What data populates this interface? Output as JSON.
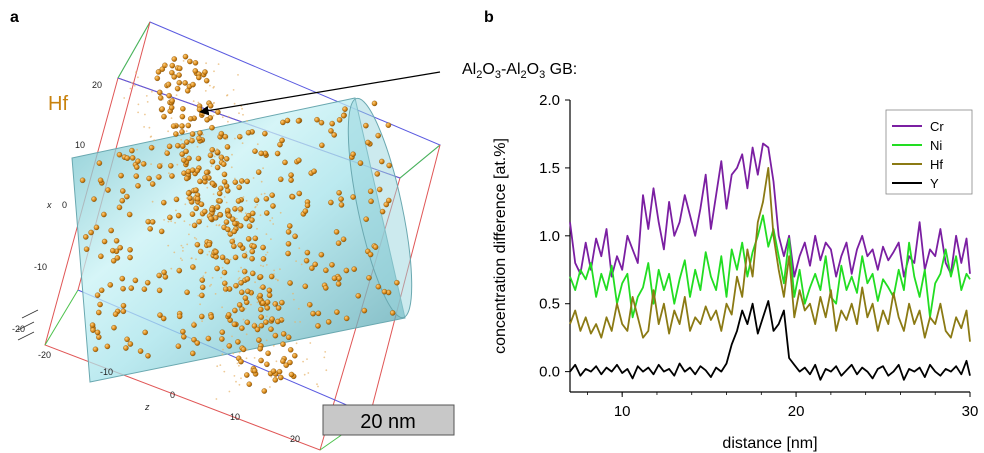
{
  "panel_a": {
    "label": "a",
    "element": "Hf",
    "element_color": "#c8820e",
    "axis_labels": {
      "x": "x",
      "z": "z"
    },
    "x_ticks": [
      "20",
      "10",
      "0",
      "-10",
      "-20"
    ],
    "z_ticks": [
      "-20",
      "-10",
      "0",
      "10",
      "20"
    ],
    "annotation": {
      "base": [
        "Al",
        "O",
        "-Al",
        "O",
        " GB:"
      ],
      "subs": [
        "2",
        "3",
        "2",
        "3"
      ]
    },
    "scale_bar": "20 nm",
    "cylinder_color": "#7fd4dc",
    "atom_color": "#d98a1a"
  },
  "chart_data": {
    "type": "line",
    "panel_label": "b",
    "xlabel": "distance  [nm]",
    "ylabel": "concentration difference [at.%]",
    "xlim": [
      7,
      30
    ],
    "ylim": [
      -0.15,
      2.0
    ],
    "xticks": [
      "10",
      "20",
      "30"
    ],
    "yticks": [
      "0.0",
      "0.5",
      "1.0",
      "1.5",
      "2.0"
    ],
    "legend_position": "top-right",
    "grid": false,
    "x": [
      7.0,
      7.3,
      7.6,
      7.9,
      8.2,
      8.5,
      8.8,
      9.1,
      9.4,
      9.7,
      10.0,
      10.3,
      10.6,
      10.9,
      11.2,
      11.5,
      11.8,
      12.1,
      12.4,
      12.7,
      13.0,
      13.3,
      13.6,
      13.9,
      14.2,
      14.5,
      14.8,
      15.1,
      15.4,
      15.7,
      16.0,
      16.3,
      16.6,
      16.9,
      17.2,
      17.5,
      17.8,
      18.1,
      18.4,
      18.7,
      19.0,
      19.3,
      19.6,
      19.9,
      20.2,
      20.5,
      20.8,
      21.1,
      21.4,
      21.7,
      22.0,
      22.3,
      22.6,
      22.9,
      23.2,
      23.5,
      23.8,
      24.1,
      24.4,
      24.7,
      25.0,
      25.3,
      25.6,
      25.9,
      26.2,
      26.5,
      26.8,
      27.1,
      27.4,
      27.7,
      28.0,
      28.3,
      28.6,
      28.9,
      29.2,
      29.5,
      29.8,
      30.0
    ],
    "series": [
      {
        "name": "Cr",
        "color": "#7b1fa2",
        "values": [
          1.1,
          0.8,
          0.72,
          0.95,
          0.75,
          0.98,
          0.85,
          1.05,
          0.7,
          0.85,
          0.75,
          1.0,
          0.9,
          0.8,
          1.3,
          1.05,
          1.35,
          1.1,
          0.9,
          1.25,
          1.0,
          1.1,
          1.3,
          1.15,
          1.0,
          1.2,
          1.45,
          1.05,
          1.3,
          1.55,
          1.2,
          1.45,
          1.5,
          1.6,
          1.35,
          1.65,
          1.45,
          1.68,
          1.65,
          1.4,
          1.0,
          0.85,
          1.0,
          0.7,
          0.85,
          0.95,
          0.78,
          1.0,
          0.82,
          0.95,
          0.9,
          0.7,
          0.85,
          0.95,
          0.72,
          0.9,
          1.0,
          0.85,
          0.9,
          0.75,
          0.92,
          0.82,
          0.88,
          0.95,
          0.7,
          0.85,
          0.8,
          1.1,
          0.75,
          0.9,
          0.85,
          1.05,
          0.8,
          0.72,
          1.0,
          0.8,
          0.98,
          0.72
        ]
      },
      {
        "name": "Ni",
        "color": "#22dd22",
        "values": [
          0.7,
          0.6,
          0.75,
          0.68,
          0.8,
          0.55,
          0.72,
          0.6,
          0.78,
          0.5,
          0.65,
          0.72,
          0.4,
          0.55,
          0.62,
          0.8,
          0.5,
          0.75,
          0.6,
          0.72,
          0.5,
          0.68,
          0.82,
          0.55,
          0.75,
          0.6,
          0.88,
          0.7,
          0.6,
          0.85,
          0.55,
          0.9,
          0.75,
          0.95,
          0.7,
          0.88,
          1.0,
          1.15,
          0.92,
          1.05,
          0.85,
          0.65,
          0.98,
          0.55,
          0.75,
          0.5,
          0.62,
          0.72,
          0.6,
          0.85,
          0.55,
          0.5,
          0.78,
          0.6,
          0.7,
          0.58,
          0.85,
          0.65,
          0.72,
          0.52,
          0.68,
          0.62,
          0.55,
          0.75,
          0.6,
          0.95,
          0.7,
          0.55,
          0.75,
          0.4,
          0.65,
          0.72,
          0.9,
          0.7,
          0.85,
          0.6,
          0.72,
          0.68
        ]
      },
      {
        "name": "Hf",
        "color": "#8b7a14",
        "values": [
          0.35,
          0.45,
          0.3,
          0.4,
          0.28,
          0.35,
          0.25,
          0.4,
          0.3,
          0.5,
          0.35,
          0.3,
          0.55,
          0.4,
          0.25,
          0.3,
          0.6,
          0.35,
          0.5,
          0.28,
          0.45,
          0.35,
          0.55,
          0.3,
          0.4,
          0.35,
          0.48,
          0.38,
          0.45,
          0.3,
          0.5,
          0.42,
          0.7,
          0.55,
          0.9,
          0.7,
          1.1,
          1.25,
          1.5,
          1.0,
          0.75,
          0.55,
          0.85,
          0.4,
          0.6,
          0.45,
          0.5,
          0.35,
          0.55,
          0.4,
          0.6,
          0.3,
          0.45,
          0.38,
          0.5,
          0.35,
          0.62,
          0.4,
          0.5,
          0.3,
          0.45,
          0.35,
          0.58,
          0.4,
          0.3,
          0.5,
          0.35,
          0.45,
          0.25,
          0.4,
          0.35,
          0.5,
          0.3,
          0.25,
          0.4,
          0.32,
          0.45,
          0.22
        ]
      },
      {
        "name": "Y",
        "color": "#000000",
        "values": [
          0.0,
          0.05,
          -0.03,
          0.02,
          0.0,
          0.04,
          -0.02,
          0.03,
          0.0,
          0.05,
          -0.01,
          0.02,
          -0.05,
          0.04,
          0.0,
          0.03,
          -0.02,
          0.05,
          0.0,
          0.02,
          -0.03,
          0.06,
          0.0,
          0.03,
          -0.02,
          0.04,
          0.01,
          -0.04,
          0.03,
          0.0,
          0.06,
          0.2,
          0.3,
          0.45,
          0.35,
          0.5,
          0.28,
          0.4,
          0.52,
          0.3,
          0.35,
          0.45,
          0.1,
          0.05,
          0.0,
          0.03,
          -0.02,
          0.05,
          -0.06,
          0.02,
          0.0,
          0.04,
          -0.03,
          0.01,
          0.05,
          -0.02,
          0.03,
          0.0,
          -0.05,
          0.02,
          0.04,
          -0.03,
          0.0,
          0.05,
          -0.06,
          0.02,
          0.0,
          0.03,
          -0.04,
          0.05,
          0.0,
          -0.03,
          0.02,
          0.0,
          0.04,
          -0.02,
          0.08,
          -0.03
        ]
      }
    ]
  }
}
